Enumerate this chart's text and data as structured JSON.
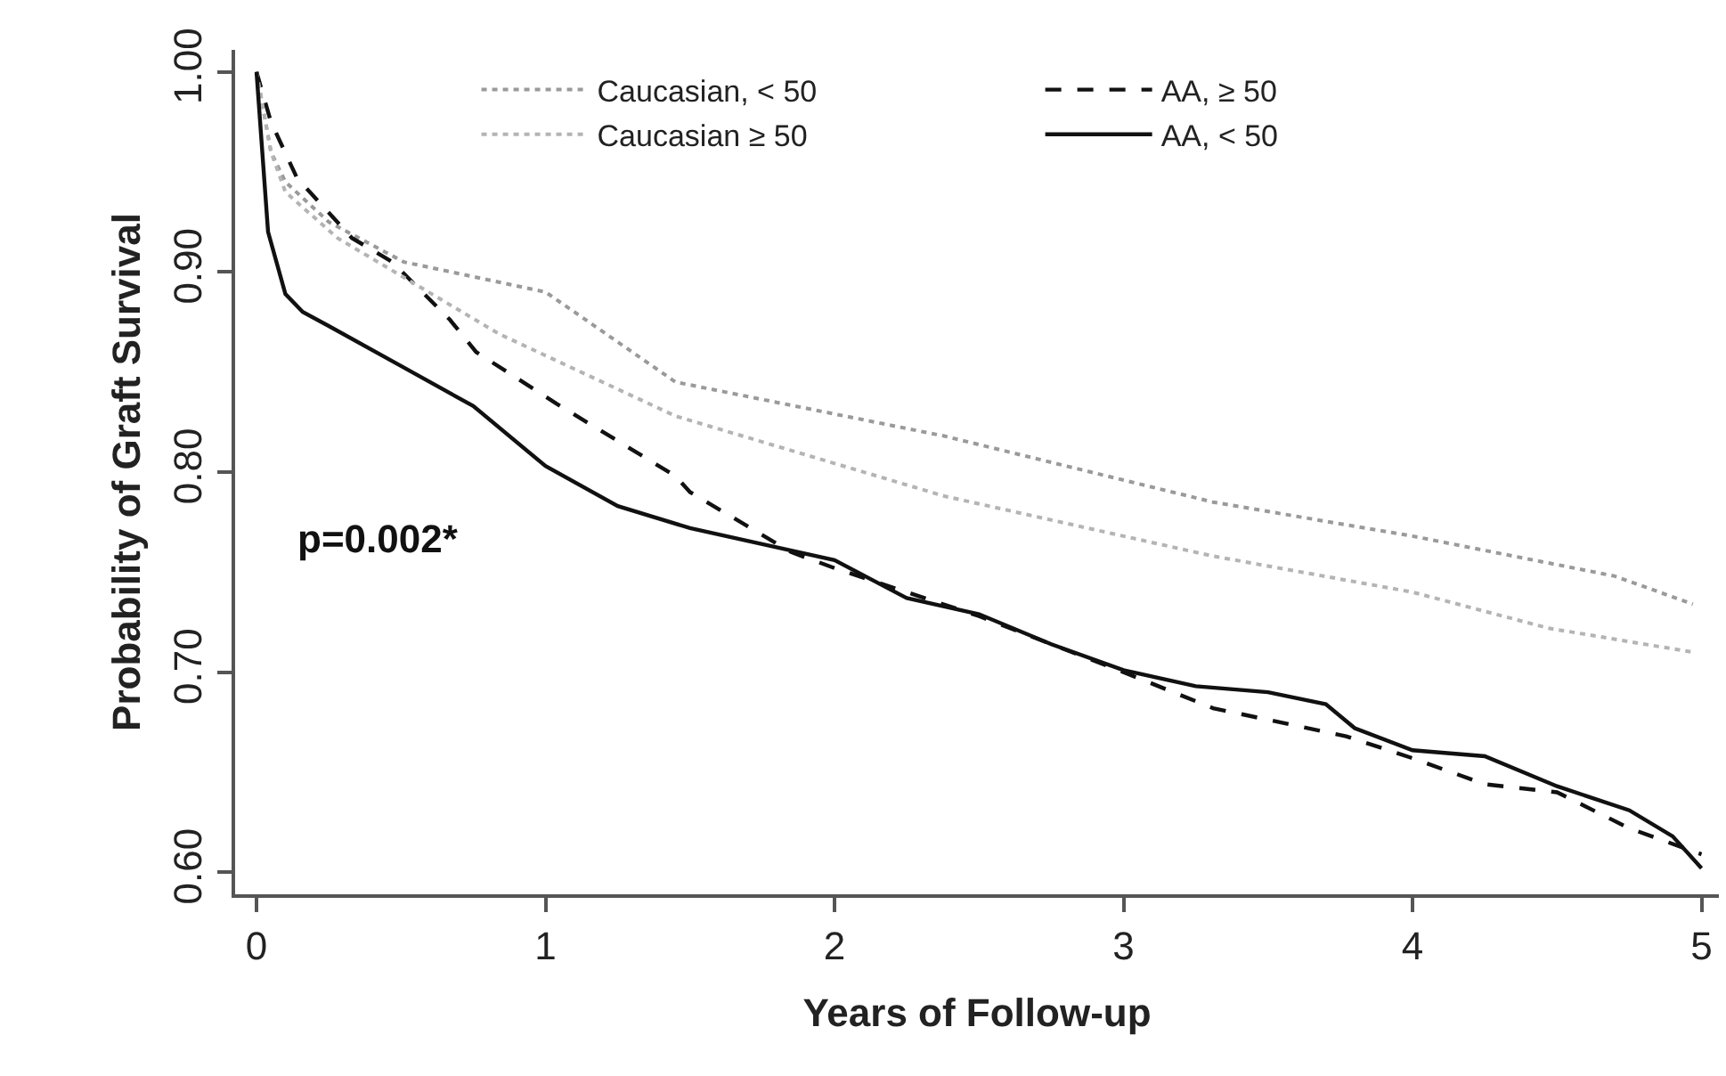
{
  "chart_data": {
    "type": "line",
    "xlabel": "Years of Follow-up",
    "ylabel": "Probability of Graft Survival",
    "xlim": [
      -0.074,
      5.06
    ],
    "ylim": [
      0.589,
      1.011
    ],
    "xticks": [
      0,
      1,
      2,
      3,
      4,
      5
    ],
    "yticks": [
      {
        "value": 0.6,
        "label": "0.60"
      },
      {
        "value": 0.7,
        "label": "0.70"
      },
      {
        "value": 0.8,
        "label": "0.80"
      },
      {
        "value": 0.9,
        "label": "0.90"
      },
      {
        "value": 1.0,
        "label": "1.00"
      }
    ],
    "legend": "top",
    "marker": "none",
    "annotations": [
      "p=0.002*"
    ],
    "series": [
      {
        "name": "Caucasian, < 50",
        "color": "#9a9a9a",
        "line_style": "dotted",
        "x": [
          0,
          0.05,
          0.1,
          0.25,
          0.51,
          1.0,
          1.45,
          2.38,
          3.31,
          4.0,
          4.7,
          4.97
        ],
        "values": [
          1.0,
          0.96,
          0.945,
          0.925,
          0.905,
          0.89,
          0.845,
          0.818,
          0.785,
          0.768,
          0.748,
          0.734
        ]
      },
      {
        "name": "AA, ≥ 50",
        "color": "#111111",
        "line_style": "dashed",
        "x": [
          0,
          0.05,
          0.14,
          0.33,
          0.47,
          0.67,
          0.76,
          1.04,
          1.45,
          1.5,
          1.85,
          2.0,
          2.5,
          3.0,
          3.31,
          3.77,
          4.0,
          4.25,
          4.5,
          4.75,
          5.0
        ],
        "values": [
          1.0,
          0.975,
          0.947,
          0.917,
          0.905,
          0.876,
          0.86,
          0.834,
          0.798,
          0.79,
          0.76,
          0.752,
          0.728,
          0.7,
          0.682,
          0.668,
          0.657,
          0.644,
          0.64,
          0.622,
          0.609
        ]
      },
      {
        "name": "Caucasian ≥ 50",
        "color": "#b4b4b4",
        "line_style": "dotted",
        "x": [
          0,
          0.05,
          0.1,
          0.28,
          0.84,
          1.45,
          2.38,
          3.31,
          4.0,
          4.47,
          4.97
        ],
        "values": [
          1.0,
          0.96,
          0.94,
          0.917,
          0.869,
          0.828,
          0.788,
          0.758,
          0.74,
          0.722,
          0.71
        ]
      },
      {
        "name": "AA, < 50",
        "color": "#111111",
        "line_style": "solid",
        "x": [
          0,
          0.04,
          0.1,
          0.16,
          0.25,
          0.5,
          0.75,
          1.0,
          1.25,
          1.5,
          1.75,
          2.0,
          2.25,
          2.5,
          2.75,
          3.0,
          3.25,
          3.5,
          3.7,
          3.8,
          4.0,
          4.25,
          4.5,
          4.75,
          4.9,
          5.0
        ],
        "values": [
          1.0,
          0.92,
          0.889,
          0.88,
          0.873,
          0.853,
          0.833,
          0.803,
          0.783,
          0.772,
          0.764,
          0.756,
          0.737,
          0.729,
          0.714,
          0.701,
          0.693,
          0.69,
          0.684,
          0.672,
          0.661,
          0.658,
          0.643,
          0.631,
          0.618,
          0.602
        ]
      }
    ]
  }
}
